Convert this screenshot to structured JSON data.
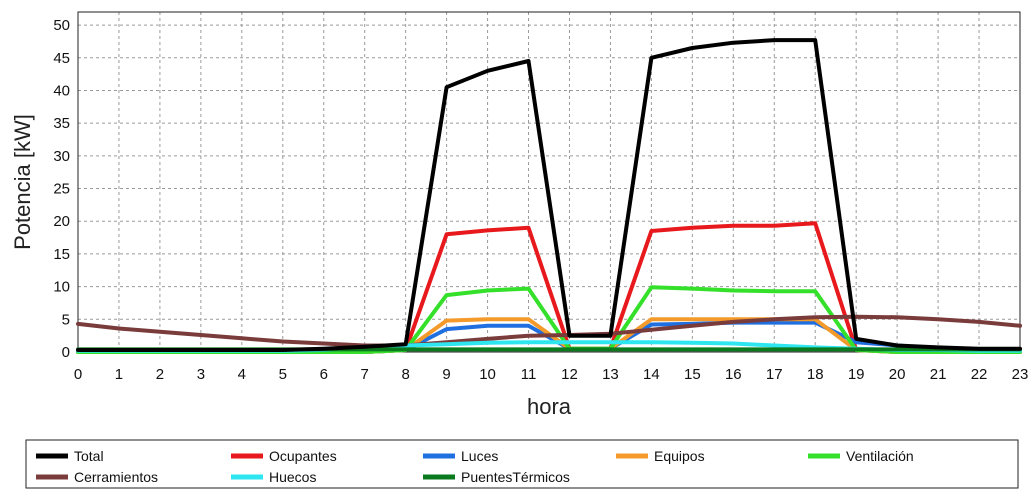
{
  "chart_data": {
    "type": "line",
    "xlabel": "hora",
    "ylabel": "Potencia [kW]",
    "xlim": [
      0,
      23
    ],
    "ylim": [
      0,
      52
    ],
    "x_ticks": [
      "0",
      "1",
      "2",
      "3",
      "4",
      "5",
      "6",
      "7",
      "8",
      "9",
      "10",
      "11",
      "12",
      "13",
      "14",
      "15",
      "16",
      "17",
      "18",
      "19",
      "20",
      "21",
      "22",
      "23"
    ],
    "y_ticks": [
      "0",
      "5",
      "10",
      "15",
      "20",
      "25",
      "30",
      "35",
      "40",
      "45",
      "50"
    ],
    "grid": true,
    "legend_position": "bottom",
    "x": [
      0,
      1,
      2,
      3,
      4,
      5,
      6,
      7,
      8,
      9,
      10,
      11,
      12,
      13,
      14,
      15,
      16,
      17,
      18,
      19,
      20,
      21,
      22,
      23
    ],
    "series": [
      {
        "name": "Total",
        "color": "#000000",
        "values": [
          0.3,
          0.3,
          0.3,
          0.3,
          0.3,
          0.3,
          0.5,
          0.8,
          1.2,
          40.5,
          43.0,
          44.5,
          2.5,
          2.5,
          45.0,
          46.5,
          47.3,
          47.7,
          47.7,
          2.0,
          1.0,
          0.7,
          0.5,
          0.5
        ]
      },
      {
        "name": "Ocupantes",
        "color": "#e8191c",
        "values": [
          0,
          0,
          0,
          0,
          0,
          0,
          0,
          0,
          0.3,
          18.0,
          18.6,
          19.0,
          0.5,
          0.5,
          18.5,
          19.0,
          19.3,
          19.3,
          19.7,
          0.3,
          0,
          0,
          0,
          0
        ]
      },
      {
        "name": "Luces",
        "color": "#1f6fe0",
        "values": [
          0,
          0,
          0,
          0,
          0,
          0,
          0,
          0,
          0.3,
          3.5,
          4.0,
          4.0,
          0.5,
          0.5,
          4.2,
          4.3,
          4.5,
          4.5,
          4.5,
          1.5,
          1.0,
          0.5,
          0.3,
          0.2
        ]
      },
      {
        "name": "Equipos",
        "color": "#f39a2b",
        "values": [
          0,
          0,
          0,
          0,
          0,
          0,
          0,
          0,
          0.3,
          4.8,
          5.0,
          5.0,
          0.5,
          0.5,
          5.0,
          5.0,
          5.0,
          5.0,
          5.0,
          0.3,
          0,
          0,
          0,
          0
        ]
      },
      {
        "name": "Ventilación",
        "color": "#35e02b",
        "values": [
          0,
          0,
          0,
          0,
          0,
          0,
          0,
          0,
          0.3,
          8.7,
          9.4,
          9.7,
          0.5,
          0.5,
          9.9,
          9.7,
          9.4,
          9.3,
          9.3,
          0.3,
          0,
          0,
          0,
          0
        ]
      },
      {
        "name": "Cerramientos",
        "color": "#7a3b3b",
        "values": [
          4.3,
          3.6,
          3.1,
          2.6,
          2.1,
          1.6,
          1.3,
          1.0,
          1.0,
          1.5,
          2.0,
          2.5,
          2.6,
          2.8,
          3.4,
          4.0,
          4.6,
          5.0,
          5.3,
          5.4,
          5.3,
          5.0,
          4.6,
          4.0
        ]
      },
      {
        "name": "Huecos",
        "color": "#2ee6f0",
        "values": [
          0.2,
          0.2,
          0.2,
          0.2,
          0.2,
          0.2,
          0.3,
          0.6,
          1.0,
          1.2,
          1.4,
          1.5,
          1.5,
          1.5,
          1.5,
          1.4,
          1.3,
          1.0,
          0.7,
          0.5,
          0.3,
          0.3,
          0.2,
          0.2
        ]
      },
      {
        "name": "PuentesTérmicos",
        "color": "#0a7a1e",
        "values": [
          0.4,
          0.4,
          0.4,
          0.4,
          0.4,
          0.4,
          0.4,
          0.4,
          0.4,
          0.4,
          0.4,
          0.4,
          0.4,
          0.4,
          0.4,
          0.4,
          0.4,
          0.4,
          0.4,
          0.4,
          0.4,
          0.4,
          0.4,
          0.4
        ]
      }
    ]
  }
}
